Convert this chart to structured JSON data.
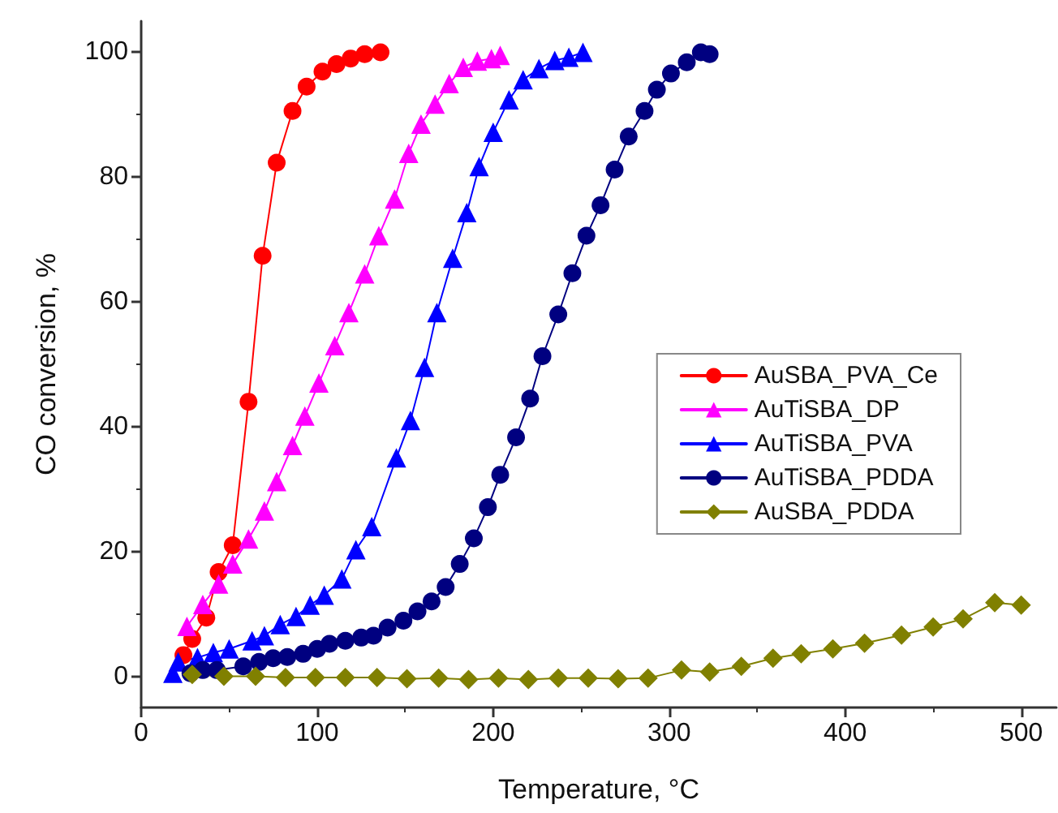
{
  "chart_data": {
    "type": "line",
    "xlabel": "Temperature, °C",
    "ylabel": "CO conversion, %",
    "xlim": [
      0,
      520
    ],
    "xticks": [
      0,
      100,
      200,
      300,
      400,
      500
    ],
    "ylim": [
      -5,
      105
    ],
    "yticks": [
      0,
      20,
      40,
      60,
      80,
      100
    ],
    "grid": false,
    "legend": "right",
    "line_style": "solid",
    "series": [
      {
        "name": "AuSBA_PVA_Ce",
        "color": "#ff0000",
        "marker": "circle",
        "x": [
          24,
          29,
          37,
          44,
          52,
          61,
          69,
          77,
          86,
          94,
          103,
          111,
          119,
          127,
          136
        ],
        "values": [
          3.4,
          6,
          9.4,
          16.7,
          21,
          44,
          67.4,
          82.3,
          90.6,
          94.5,
          96.9,
          98.1,
          99,
          99.7,
          100
        ]
      },
      {
        "name": "AuTiSBA_DP",
        "color": "#ff00ff",
        "marker": "triangle",
        "x": [
          26,
          35,
          44,
          52,
          61,
          70,
          77,
          86,
          93,
          101,
          110,
          118,
          127,
          135,
          144,
          152,
          159,
          167,
          175,
          183,
          191,
          199,
          204
        ],
        "values": [
          8,
          11.5,
          14.8,
          18,
          22,
          26.5,
          31.2,
          37,
          41.7,
          47,
          53,
          58.3,
          64.5,
          70.6,
          76.5,
          83.8,
          88.5,
          91.7,
          95,
          97.6,
          98.6,
          99,
          99.5
        ]
      },
      {
        "name": "AuTiSBA_PVA",
        "color": "#0000ff",
        "marker": "triangle",
        "x": [
          18,
          21,
          32,
          41,
          50,
          63,
          70,
          79,
          88,
          96,
          104,
          114,
          122,
          131,
          145,
          153,
          161,
          168,
          177,
          185,
          192,
          200,
          209,
          217,
          226,
          235,
          243,
          251
        ],
        "values": [
          0.5,
          2.3,
          3,
          3.8,
          4.4,
          5.7,
          6.5,
          8.3,
          9.6,
          11.4,
          13,
          15.6,
          20.3,
          24,
          35,
          41,
          49.5,
          58.3,
          67,
          74.3,
          81.7,
          87.2,
          92.4,
          95.6,
          97.4,
          98.7,
          99.2,
          100
        ]
      },
      {
        "name": "AuTiSBA_PDDA",
        "color": "#000080",
        "marker": "circle",
        "x": [
          28,
          35,
          43,
          58,
          67,
          75,
          83,
          92,
          100,
          107,
          116,
          125,
          132,
          140,
          149,
          157,
          165,
          173,
          181,
          189,
          197,
          204,
          213,
          221,
          228,
          237,
          245,
          253,
          261,
          269,
          277,
          286,
          293,
          301,
          310,
          318,
          323
        ],
        "values": [
          0.5,
          1,
          1,
          1.6,
          2.3,
          2.9,
          3.1,
          3.6,
          4.4,
          5.2,
          5.7,
          6.2,
          6.5,
          7.8,
          8.9,
          10.4,
          12,
          14.3,
          18,
          22.1,
          27.1,
          32.3,
          38.3,
          44.5,
          51.3,
          58,
          64.6,
          70.6,
          75.5,
          81.2,
          86.5,
          90.6,
          94,
          96.6,
          98.4,
          100,
          99.7
        ]
      },
      {
        "name": "AuSBA_PDDA",
        "color": "#808000",
        "marker": "diamond",
        "x": [
          29,
          47,
          65,
          82,
          99,
          116,
          134,
          151,
          169,
          186,
          203,
          220,
          237,
          254,
          271,
          288,
          307,
          323,
          341,
          359,
          375,
          393,
          411,
          432,
          450,
          467,
          485,
          500
        ],
        "values": [
          0.3,
          0,
          0,
          -0.2,
          -0.2,
          -0.2,
          -0.2,
          -0.4,
          -0.3,
          -0.5,
          -0.3,
          -0.5,
          -0.3,
          -0.3,
          -0.4,
          -0.3,
          1,
          0.7,
          1.6,
          2.9,
          3.6,
          4.4,
          5.3,
          6.6,
          7.9,
          9.2,
          11.8,
          11.4
        ]
      }
    ]
  }
}
